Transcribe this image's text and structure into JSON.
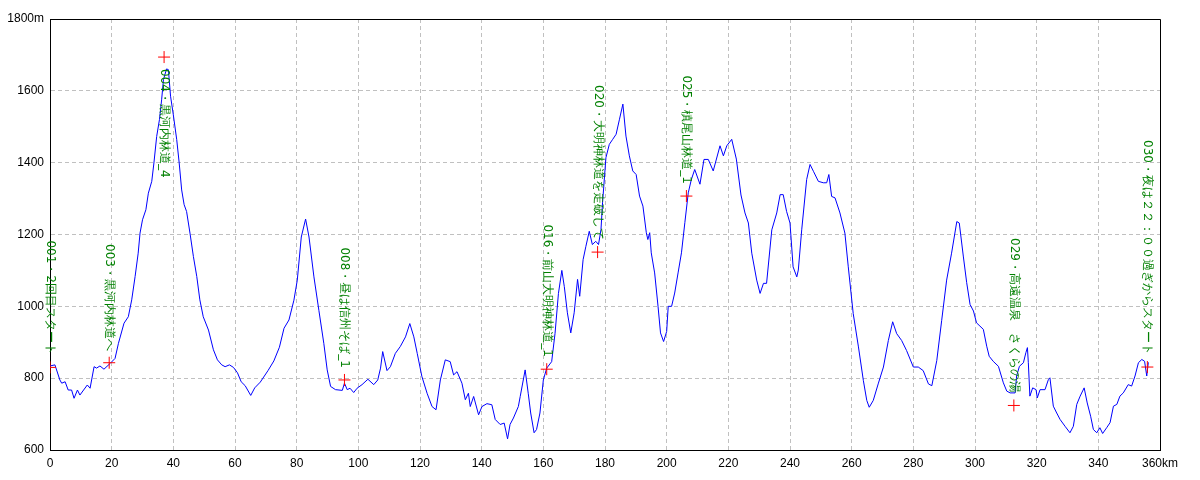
{
  "chart_data": {
    "type": "line",
    "xlim": [
      0,
      360
    ],
    "ylim": [
      600,
      1800
    ],
    "xticks": [
      0,
      20,
      40,
      60,
      80,
      100,
      120,
      140,
      160,
      180,
      200,
      220,
      240,
      260,
      280,
      300,
      320,
      340,
      {
        "value": 360,
        "label": "360km"
      }
    ],
    "yticks": [
      600,
      800,
      1000,
      1200,
      1400,
      1600,
      {
        "value": 1800,
        "label": "1800m"
      }
    ],
    "grid": true,
    "series": [
      {
        "type": "line",
        "color": "#0000ff",
        "x": [
          0,
          1.6,
          3.2,
          3.8,
          4.9,
          5.9,
          7,
          7.8,
          8.9,
          9.7,
          12.1,
          13,
          14.3,
          15.1,
          16.2,
          17.5,
          19.5,
          21.1,
          22.2,
          24,
          25.4,
          26.5,
          27.6,
          28.6,
          29.2,
          30,
          31.1,
          31.9,
          33,
          33.7,
          34.6,
          35.5,
          36.2,
          36.8,
          37.8,
          38.4,
          39.1,
          40,
          41.1,
          41.9,
          42.7,
          43.5,
          44.3,
          45.4,
          46.5,
          47.6,
          48.6,
          49.7,
          51.4,
          53,
          54.3,
          55.7,
          56.8,
          58.2,
          59.5,
          60.8,
          62,
          63.3,
          65.1,
          66.4,
          68.2,
          70.7,
          72.6,
          74.4,
          75.9,
          77.5,
          79.1,
          80.2,
          81.5,
          82.9,
          84,
          85.6,
          87.2,
          88.8,
          89.9,
          91,
          92.6,
          94.8,
          95.5,
          96.4,
          97.3,
          98.5,
          99.6,
          101.2,
          103.1,
          105,
          106.3,
          107.2,
          107.9,
          109.3,
          110.4,
          112,
          113.6,
          115.3,
          116.7,
          118,
          119.1,
          120.6,
          122.3,
          123.9,
          125.2,
          126.6,
          128.2,
          129.8,
          130.9,
          132,
          133.6,
          134.7,
          135.7,
          136.3,
          137.4,
          139,
          140.1,
          141.7,
          143.3,
          144.4,
          146,
          147.3,
          148.4,
          149.2,
          150.3,
          151.9,
          152.5,
          154.1,
          155.1,
          155.9,
          157,
          157.8,
          158.9,
          160,
          161.1,
          162.7,
          163.8,
          164.9,
          166,
          166.8,
          167.8,
          168.9,
          170,
          171.1,
          171.8,
          172.9,
          173.8,
          174.9,
          175.9,
          177,
          177.9,
          178.7,
          179.2,
          180.3,
          181.4,
          182.5,
          183.6,
          184.7,
          185.8,
          186.8,
          187.9,
          189,
          190.1,
          191.2,
          192.3,
          193.4,
          193.9,
          194.5,
          195,
          196.1,
          197.2,
          198,
          199,
          200,
          200.5,
          201.6,
          202.6,
          203.7,
          204.8,
          205.9,
          207,
          208,
          209.1,
          210.8,
          212.1,
          213.5,
          215.1,
          217.3,
          218.4,
          219.5,
          221.1,
          222.6,
          224.1,
          225.4,
          226.5,
          227.6,
          229.2,
          230.3,
          231.4,
          232.4,
          234.1,
          235.7,
          236.8,
          237.8,
          238.9,
          240,
          241,
          242.2,
          242.7,
          243.8,
          245.4,
          246.5,
          247.6,
          249.2,
          250.8,
          251.9,
          252.6,
          253.5,
          254.6,
          256.2,
          257.8,
          258.9,
          260.5,
          262.2,
          263.8,
          264.9,
          265.7,
          267,
          268.6,
          270.3,
          271.9,
          273.3,
          274.6,
          276.2,
          277.8,
          280,
          281.6,
          283.2,
          284.9,
          286,
          287.6,
          289.2,
          290.8,
          292.4,
          294.1,
          294.9,
          296.2,
          297.3,
          298.4,
          299.5,
          300.5,
          301.6,
          302.7,
          303.8,
          304.6,
          305.9,
          307.6,
          309.2,
          310.3,
          311.4,
          313,
          313.5,
          314.4,
          315.7,
          316.5,
          317,
          317.3,
          317.8,
          318.7,
          319.8,
          320.2,
          321.1,
          322.7,
          323.8,
          324.3,
          325.4,
          326.5,
          327.6,
          329.2,
          330.8,
          331.9,
          333,
          334.1,
          335.4,
          336.4,
          337.5,
          338.4,
          339.5,
          340.5,
          341.4,
          342.7,
          343.8,
          344.9,
          346,
          347,
          348.1,
          349.7,
          350.8,
          351.9,
          353,
          354.1,
          355,
          355.7,
          356.2
        ],
        "values": [
          834,
          837,
          795,
          786,
          790,
          767,
          767,
          744,
          767,
          753,
          781,
          772,
          832,
          828,
          834,
          825,
          841,
          855,
          897,
          953,
          971,
          1018,
          1083,
          1148,
          1204,
          1241,
          1269,
          1315,
          1348,
          1399,
          1473,
          1520,
          1575,
          1631,
          1661,
          1659,
          1585,
          1533,
          1464,
          1399,
          1324,
          1283,
          1264,
          1204,
          1139,
          1083,
          1018,
          971,
          934,
          879,
          851,
          837,
          832,
          837,
          830,
          815,
          790,
          779,
          752,
          773,
          789,
          821,
          848,
          886,
          939,
          962,
          1017,
          1073,
          1193,
          1243,
          1193,
          1082,
          989,
          897,
          823,
          777,
          768,
          766,
          786,
          768,
          772,
          760,
          772,
          782,
          797,
          782,
          795,
          828,
          874,
          821,
          832,
          869,
          888,
          915,
          952,
          915,
          869,
          805,
          758,
          721,
          712,
          795,
          851,
          846,
          809,
          818,
          786,
          740,
          758,
          721,
          749,
          698,
          721,
          729,
          726,
          685,
          671,
          675,
          631,
          671,
          689,
          721,
          749,
          823,
          758,
          703,
          648,
          657,
          703,
          795,
          828,
          846,
          925,
          1036,
          1100,
          1055,
          982,
          926,
          982,
          1075,
          1028,
          1130,
          1167,
          1209,
          1172,
          1181,
          1172,
          1214,
          1288,
          1414,
          1451,
          1465,
          1479,
          1521,
          1563,
          1474,
          1419,
          1377,
          1367,
          1307,
          1279,
          1205,
          1186,
          1205,
          1149,
          1093,
          1000,
          926,
          902,
          930,
          1000,
          1000,
          1037,
          1093,
          1149,
          1233,
          1316,
          1353,
          1381,
          1340,
          1409,
          1409,
          1377,
          1447,
          1419,
          1447,
          1465,
          1410,
          1310,
          1260,
          1232,
          1148,
          1073,
          1036,
          1064,
          1064,
          1213,
          1260,
          1311,
          1311,
          1264,
          1232,
          1110,
          1082,
          1101,
          1213,
          1353,
          1395,
          1376,
          1348,
          1344,
          1344,
          1367,
          1306,
          1302,
          1260,
          1204,
          1110,
          980,
          887,
          793,
          738,
          719,
          738,
          784,
          831,
          905,
          957,
          924,
          905,
          877,
          831,
          831,
          821,
          784,
          779,
          849,
          961,
          1073,
          1148,
          1236,
          1232,
          1140,
          1066,
          1005,
          987,
          954,
          945,
          936,
          889,
          861,
          847,
          833,
          787,
          764,
          759,
          759,
          806,
          833,
          843,
          871,
          885,
          843,
          750,
          773,
          768,
          745,
          768,
          768,
          796,
          801,
          722,
          703,
          685,
          666,
          648,
          666,
          727,
          750,
          773,
          731,
          694,
          657,
          648,
          662,
          646,
          662,
          676,
          722,
          727,
          750,
          759,
          782,
          778,
          806,
          843,
          852,
          847,
          806,
          843
        ]
      },
      {
        "type": "scatter",
        "color": "#ff0000",
        "marker": "cross",
        "x": [
          0,
          19.2,
          37,
          95.5,
          161.1,
          177.6,
          206.4,
          312.6,
          355.9
        ],
        "values": [
          830,
          843,
          1694,
          795,
          825,
          1151,
          1307,
          724,
          831
        ]
      }
    ],
    "annotations": [
      {
        "text": "001・2回目スタート",
        "x": 0,
        "y": 830
      },
      {
        "text": "003・黒河内林道へ",
        "x": 19.2,
        "y": 843
      },
      {
        "text": "004・黒河内林道_4",
        "x": 37,
        "y": 1694
      },
      {
        "text": "008・昼は信州そば_1",
        "x": 95.5,
        "y": 795
      },
      {
        "text": "016・前山大明神林道_1",
        "x": 161.1,
        "y": 825
      },
      {
        "text": "020・大明神林道を走破して",
        "x": 177.6,
        "y": 1151
      },
      {
        "text": "025・槙尾山林道_1",
        "x": 206.4,
        "y": 1307
      },
      {
        "text": "029・高遠温泉　さくらの湯",
        "x": 312.6,
        "y": 724
      },
      {
        "text": "030・夜は２２：００過ぎからスタート",
        "x": 355.9,
        "y": 831
      }
    ]
  }
}
